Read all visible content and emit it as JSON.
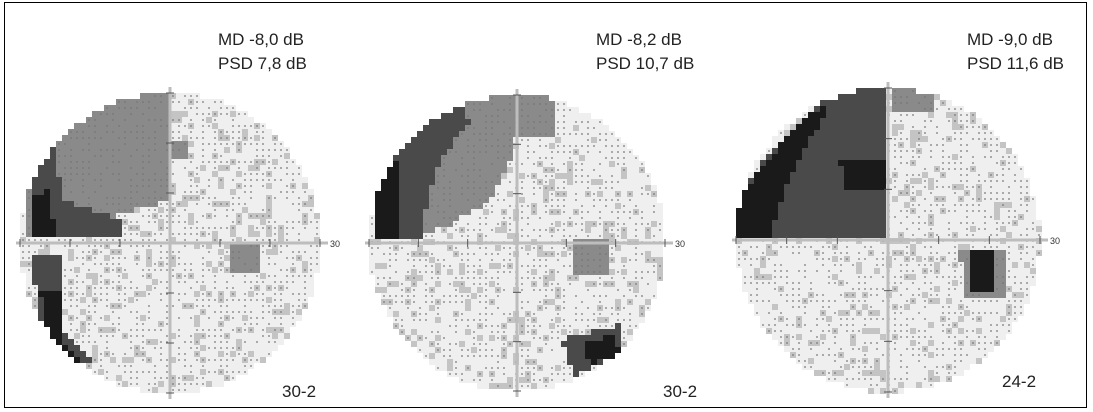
{
  "figure": {
    "panels": [
      {
        "md": "MD -8,0 dB",
        "psd": "PSD 7,8 dB",
        "program": "30-2",
        "axis_label": "30"
      },
      {
        "md": "MD -8,2 dB",
        "psd": "PSD 10,7 dB",
        "program": "30-2",
        "axis_label": "30"
      },
      {
        "md": "MD -9,0 dB",
        "psd": "PSD 11,6 dB",
        "program": "24-2",
        "axis_label": "30"
      }
    ]
  },
  "colors": {
    "severe": "#1a1a1a",
    "moderate": "#4a4a4a",
    "mild": "#8a8a8a",
    "slight": "#c4c4c4",
    "normal": "#efefef",
    "axis": "#bdbdbd"
  }
}
